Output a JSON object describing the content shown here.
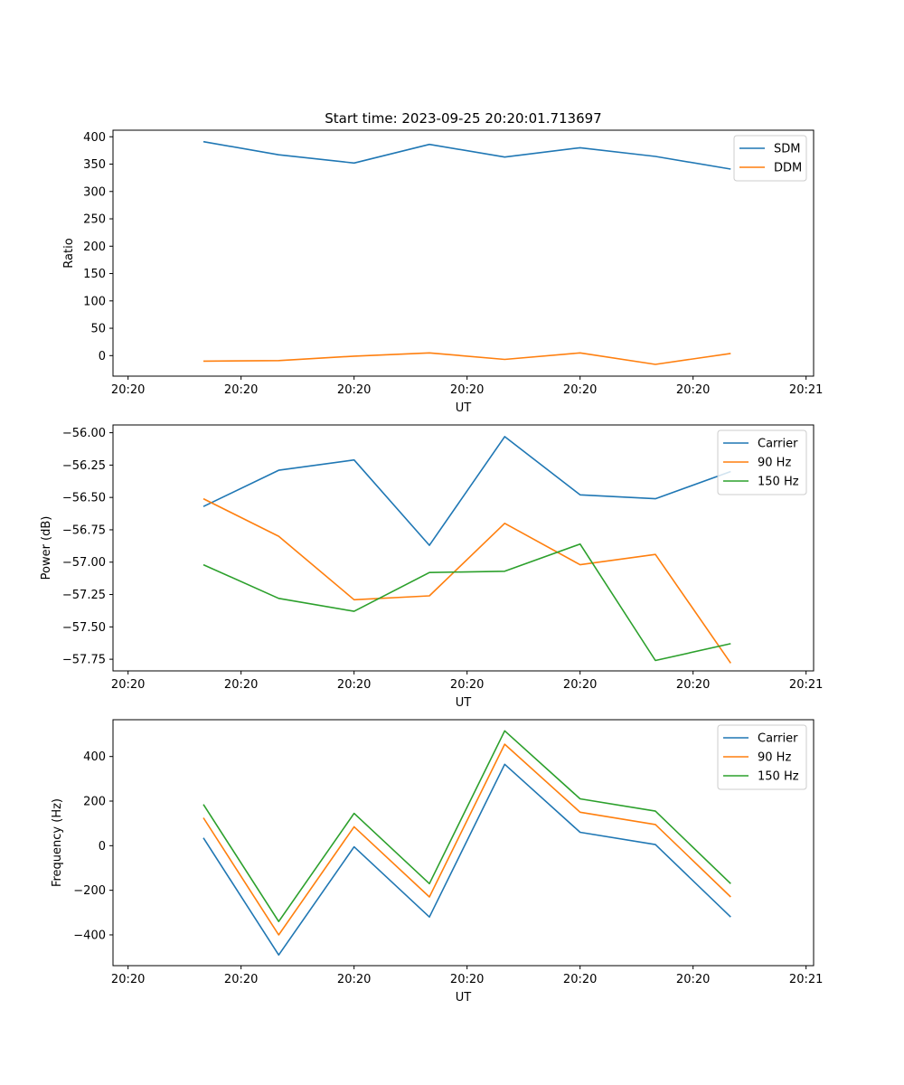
{
  "figure_title": "Start time: 2023-09-25 20:20:01.713697",
  "chart_data": [
    {
      "type": "line",
      "title": "Start time: 2023-09-25 20:20:01.713697",
      "xlabel": "UT",
      "ylabel": "Ratio",
      "x": [
        1,
        2,
        3,
        4,
        5,
        6,
        7,
        8
      ],
      "xlim": [
        -0.2,
        9.1
      ],
      "xticks": [
        0,
        1.5,
        3,
        4.5,
        6,
        7.5,
        9
      ],
      "xtick_labels": [
        "20:20",
        "20:20",
        "20:20",
        "20:20",
        "20:20",
        "20:20",
        "20:21"
      ],
      "ylim": [
        -37.5,
        412
      ],
      "yticks": [
        0,
        50,
        100,
        150,
        200,
        250,
        300,
        350,
        400
      ],
      "ytick_labels": [
        "0",
        "50",
        "100",
        "150",
        "200",
        "250",
        "300",
        "350",
        "400"
      ],
      "legend_position": "top-right",
      "series": [
        {
          "name": "SDM",
          "color": "#1f77b4",
          "values": [
            391,
            367,
            352,
            386,
            363,
            380,
            364,
            341
          ]
        },
        {
          "name": "DDM",
          "color": "#ff7f0e",
          "values": [
            -10,
            -9,
            -1,
            5,
            -7,
            5,
            -16,
            4
          ]
        }
      ]
    },
    {
      "type": "line",
      "title": "",
      "xlabel": "UT",
      "ylabel": "Power (dB)",
      "x": [
        1,
        2,
        3,
        4,
        5,
        6,
        7,
        8
      ],
      "xlim": [
        -0.2,
        9.1
      ],
      "xticks": [
        0,
        1.5,
        3,
        4.5,
        6,
        7.5,
        9
      ],
      "xtick_labels": [
        "20:20",
        "20:20",
        "20:20",
        "20:20",
        "20:20",
        "20:20",
        "20:21"
      ],
      "ylim": [
        -57.84,
        -55.94
      ],
      "yticks": [
        -56.0,
        -56.25,
        -56.5,
        -56.75,
        -57.0,
        -57.25,
        -57.5,
        -57.75
      ],
      "ytick_labels": [
        "−56.00",
        "−56.25",
        "−56.50",
        "−56.75",
        "−57.00",
        "−57.25",
        "−57.50",
        "−57.75"
      ],
      "legend_position": "top-right",
      "series": [
        {
          "name": "Carrier",
          "color": "#1f77b4",
          "values": [
            -56.57,
            -56.29,
            -56.21,
            -56.87,
            -56.03,
            -56.48,
            -56.51,
            -56.3
          ]
        },
        {
          "name": "90 Hz",
          "color": "#ff7f0e",
          "values": [
            -56.51,
            -56.8,
            -57.29,
            -57.26,
            -56.7,
            -57.02,
            -56.94,
            -57.78
          ]
        },
        {
          "name": "150 Hz",
          "color": "#2ca02c",
          "values": [
            -57.02,
            -57.28,
            -57.38,
            -57.08,
            -57.07,
            -56.86,
            -57.76,
            -57.63
          ]
        }
      ]
    },
    {
      "type": "line",
      "title": "",
      "xlabel": "UT",
      "ylabel": "Frequency (Hz)",
      "x": [
        1,
        2,
        3,
        4,
        5,
        6,
        7,
        8
      ],
      "xlim": [
        -0.2,
        9.1
      ],
      "xticks": [
        0,
        1.5,
        3,
        4.5,
        6,
        7.5,
        9
      ],
      "xtick_labels": [
        "20:20",
        "20:20",
        "20:20",
        "20:20",
        "20:20",
        "20:20",
        "20:21"
      ],
      "ylim": [
        -538,
        565
      ],
      "yticks": [
        -400,
        -200,
        0,
        200,
        400
      ],
      "ytick_labels": [
        "−400",
        "−200",
        "0",
        "200",
        "400"
      ],
      "legend_position": "top-right",
      "series": [
        {
          "name": "Carrier",
          "color": "#1f77b4",
          "values": [
            35,
            -490,
            -5,
            -320,
            365,
            60,
            5,
            -320
          ]
        },
        {
          "name": "90 Hz",
          "color": "#ff7f0e",
          "values": [
            125,
            -400,
            85,
            -230,
            455,
            150,
            95,
            -230
          ]
        },
        {
          "name": "150 Hz",
          "color": "#2ca02c",
          "values": [
            185,
            -340,
            145,
            -170,
            515,
            210,
            155,
            -170
          ]
        }
      ]
    }
  ]
}
